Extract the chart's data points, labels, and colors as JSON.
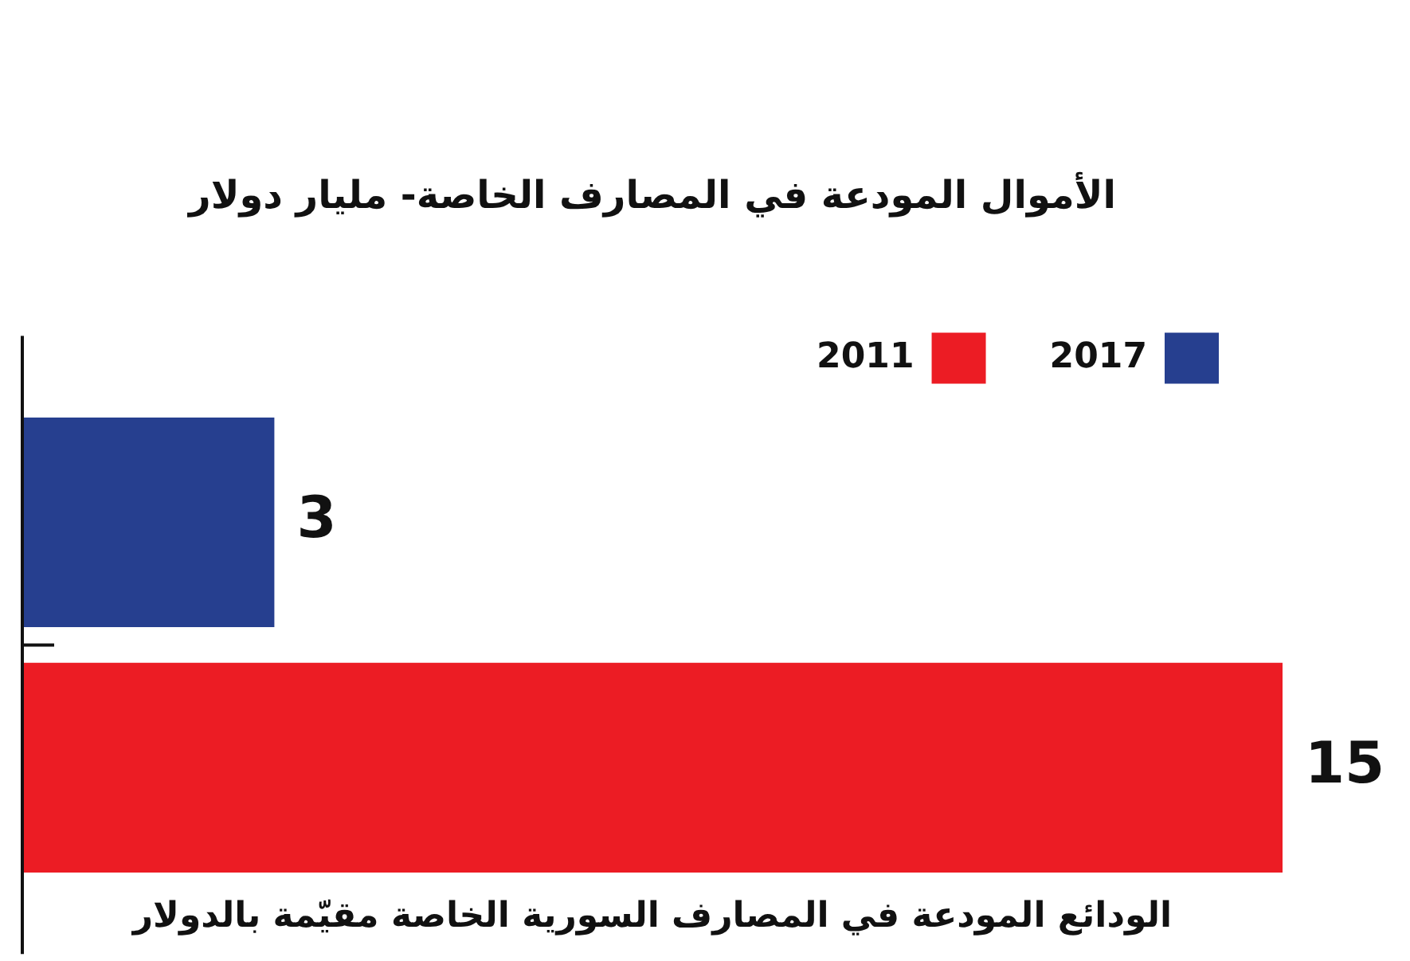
{
  "chart_data": {
    "type": "bar",
    "orientation": "horizontal",
    "title": "الأموال المودعة في المصارف الخاصة- مليار دولار",
    "xlabel": "الودائع المودعة في المصارف السورية الخاصة مقيّمة بالدولار",
    "categories": [
      null,
      null
    ],
    "series": [
      {
        "name": "2017",
        "color": "#263f8f",
        "values": [
          3,
          null
        ]
      },
      {
        "name": "2011",
        "color": "#ec1c24",
        "values": [
          null,
          15
        ]
      }
    ],
    "xlim": [
      0,
      15
    ],
    "stacked": true,
    "data_labels": true,
    "grid": false,
    "legend": "top right",
    "tick_labels": false
  }
}
